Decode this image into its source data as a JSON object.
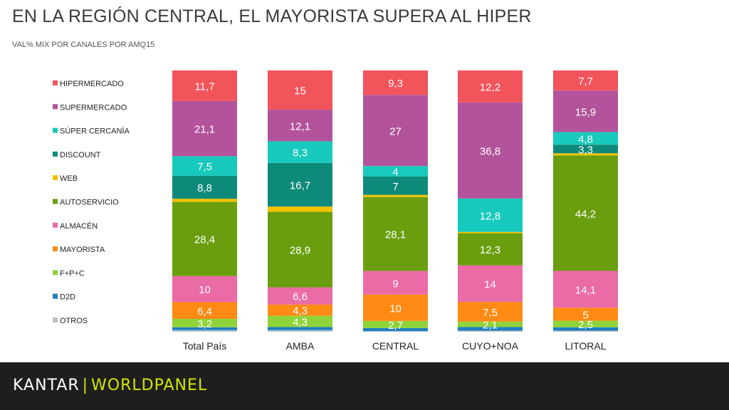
{
  "header": {
    "title": "EN LA REGIÓN CENTRAL, EL MAYORISTA SUPERA AL HIPER",
    "subtitle": "VAL% MIX POR CANALES POR AMQ15"
  },
  "footer": {
    "brand": "KANTAR",
    "product": "WORLDPANEL"
  },
  "chart_data": {
    "type": "bar",
    "stacked": true,
    "percent_stacked": true,
    "categories": [
      "Total País",
      "AMBA",
      "CENTRAL",
      "CUYO+NOA",
      "LITORAL"
    ],
    "series": [
      {
        "name": "HIPERMERCADO",
        "color": "#f2545b",
        "values": [
          11.7,
          15,
          9.3,
          12.2,
          7.7
        ],
        "labels": [
          "11,7",
          "15",
          "9,3",
          "12,2",
          "7,7"
        ]
      },
      {
        "name": "SUPERMERCADO",
        "color": "#b3539b",
        "values": [
          21.1,
          12.1,
          27,
          36.8,
          15.9
        ],
        "labels": [
          "21,1",
          "12,1",
          "27",
          "36,8",
          "15,9"
        ]
      },
      {
        "name": "SÚPER CERCANÍA",
        "color": "#18c9bd",
        "values": [
          7.5,
          8.3,
          4,
          12.8,
          4.8
        ],
        "labels": [
          "7,5",
          "8,3",
          "4",
          "12,8",
          "4,8"
        ]
      },
      {
        "name": "DISCOUNT",
        "color": "#0e8a7a",
        "values": [
          8.8,
          16.7,
          7,
          0,
          3.3
        ],
        "labels": [
          "8,8",
          "16,7",
          "7",
          "",
          "3,3"
        ]
      },
      {
        "name": "WEB",
        "color": "#f2c200",
        "values": [
          1.2,
          2,
          0.8,
          0.5,
          0.8
        ],
        "labels": [
          "",
          "",
          "",
          "",
          ""
        ]
      },
      {
        "name": "AUTOSERVICIO",
        "color": "#6a9e0f",
        "values": [
          28.4,
          28.9,
          28.1,
          12.3,
          44.2
        ],
        "labels": [
          "28,4",
          "28,9",
          "28,1",
          "12,3",
          "44,2"
        ]
      },
      {
        "name": "ALMACÉN",
        "color": "#ea6ba5",
        "values": [
          10,
          6.6,
          9,
          14,
          14.1
        ],
        "labels": [
          "10",
          "6,6",
          "9",
          "14",
          "14,1"
        ]
      },
      {
        "name": "MAYORISTA",
        "color": "#ff8a14",
        "values": [
          6.4,
          4.3,
          10,
          7.5,
          5
        ],
        "labels": [
          "6,4",
          "4,3",
          "10",
          "7,5",
          "5"
        ]
      },
      {
        "name": "F+P+C",
        "color": "#8fd33a",
        "values": [
          3.2,
          4.3,
          2.7,
          2.1,
          2.5
        ],
        "labels": [
          "3,2",
          "4,3",
          "2,7",
          "2,1",
          "2,5"
        ]
      },
      {
        "name": "D2D",
        "color": "#1f7fbf",
        "values": [
          1.1,
          1.2,
          1.2,
          1.4,
          1.3
        ],
        "labels": [
          "",
          "",
          "",
          "",
          ""
        ]
      },
      {
        "name": "OTROS",
        "color": "#b8c3cc",
        "values": [
          0.6,
          0.6,
          0.2,
          0.4,
          0.4
        ],
        "labels": [
          "",
          "",
          "",
          "",
          ""
        ]
      }
    ],
    "legend": "left",
    "ylim": [
      0,
      100
    ],
    "grid": false
  }
}
